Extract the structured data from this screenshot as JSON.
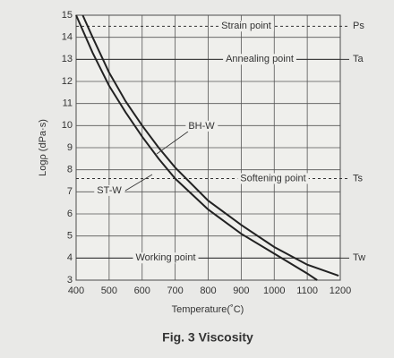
{
  "chart_data": {
    "type": "line",
    "caption": "Fig. 3 Viscosity",
    "x_label": "Temperature(˚C)",
    "y_label": "Logρ (dPa·s)",
    "xlim": [
      400,
      1200
    ],
    "xticks": [
      400,
      500,
      600,
      700,
      800,
      900,
      1000,
      1100,
      1200
    ],
    "ylim": [
      3,
      15
    ],
    "yticks": [
      3,
      4,
      5,
      6,
      7,
      8,
      9,
      10,
      11,
      12,
      13,
      14,
      15
    ],
    "grid": true,
    "series": [
      {
        "name": "BH-W",
        "color": "#222222",
        "x": [
          420,
          450,
          500,
          550,
          600,
          650,
          700,
          800,
          900,
          1000,
          1100,
          1195
        ],
        "values": [
          15,
          14,
          12.4,
          11.1,
          10.0,
          9.0,
          8.1,
          6.6,
          5.5,
          4.5,
          3.7,
          3.2
        ]
      },
      {
        "name": "ST-W",
        "color": "#222222",
        "x": [
          400,
          450,
          500,
          550,
          600,
          650,
          700,
          800,
          900,
          1000,
          1100,
          1130
        ],
        "values": [
          15,
          13.3,
          11.8,
          10.6,
          9.5,
          8.5,
          7.6,
          6.2,
          5.1,
          4.2,
          3.3,
          3.0
        ]
      }
    ],
    "reference_lines": [
      {
        "name": "Strain point",
        "symbol": "Ps",
        "value": 14.5,
        "style": "dashed"
      },
      {
        "name": "Annealing point",
        "symbol": "Ta",
        "value": 13,
        "style": "solid"
      },
      {
        "name": "Softening point",
        "symbol": "Ts",
        "value": 7.6,
        "style": "dashed"
      },
      {
        "name": "Working point",
        "symbol": "Tw",
        "value": 4,
        "style": "solid"
      }
    ]
  }
}
